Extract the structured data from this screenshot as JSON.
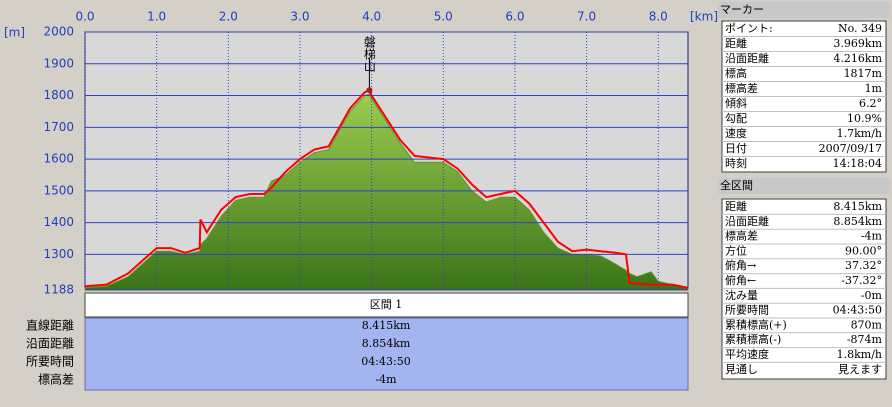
{
  "chart_data": {
    "type": "line",
    "x_label": "[km]",
    "y_label": "[m]",
    "x": [
      0,
      0.3,
      0.6,
      0.9,
      1.0,
      1.2,
      1.4,
      1.6,
      1.61,
      1.7,
      1.9,
      2.1,
      2.3,
      2.5,
      2.6,
      2.8,
      3.0,
      3.2,
      3.4,
      3.5,
      3.7,
      3.9,
      3.969,
      4.0,
      4.2,
      4.4,
      4.6,
      4.8,
      5.0,
      5.2,
      5.4,
      5.6,
      5.8,
      6.0,
      6.2,
      6.4,
      6.6,
      6.8,
      7.0,
      7.2,
      7.4,
      7.55,
      7.6,
      7.7,
      7.9,
      8.0,
      8.2,
      8.415
    ],
    "series": [
      {
        "color": "#5a9a2a",
        "fill": true,
        "values": [
          1195,
          1200,
          1230,
          1290,
          1310,
          1310,
          1300,
          1310,
          1330,
          1350,
          1420,
          1470,
          1480,
          1480,
          1530,
          1550,
          1590,
          1620,
          1630,
          1670,
          1750,
          1800,
          1805,
          1790,
          1720,
          1650,
          1590,
          1590,
          1590,
          1560,
          1500,
          1465,
          1480,
          1480,
          1440,
          1370,
          1320,
          1300,
          1300,
          1295,
          1270,
          1250,
          1240,
          1230,
          1245,
          1215,
          1205,
          1195
        ]
      },
      {
        "color": "#ff0000",
        "fill": false,
        "values": [
          1200,
          1205,
          1240,
          1300,
          1320,
          1320,
          1305,
          1320,
          1410,
          1370,
          1440,
          1480,
          1490,
          1490,
          1510,
          1560,
          1600,
          1630,
          1640,
          1680,
          1760,
          1810,
          1817,
          1800,
          1730,
          1660,
          1610,
          1605,
          1600,
          1570,
          1520,
          1480,
          1490,
          1500,
          1460,
          1400,
          1340,
          1310,
          1315,
          1310,
          1305,
          1300,
          1210,
          1208,
          1205,
          1205,
          1205,
          1195
        ]
      }
    ],
    "xlim": [
      0,
      8.415
    ],
    "xticks": [
      {
        "value": 0,
        "label": "0.0"
      },
      {
        "value": 1,
        "label": "1.0"
      },
      {
        "value": 2,
        "label": "2.0"
      },
      {
        "value": 3,
        "label": "3.0"
      },
      {
        "value": 4,
        "label": "4.0"
      },
      {
        "value": 5,
        "label": "5.0"
      },
      {
        "value": 6,
        "label": "6.0"
      },
      {
        "value": 7,
        "label": "7.0"
      },
      {
        "value": 8,
        "label": "8.0"
      }
    ],
    "ylim": [
      1188,
      2000
    ],
    "yticks": [
      1188,
      1300,
      1400,
      1500,
      1600,
      1700,
      1800,
      1900,
      2000
    ],
    "grid": true,
    "annotation": {
      "text": "磐梯山",
      "x": 3.969,
      "y": 1817
    }
  },
  "section": {
    "title": "区間 1",
    "rows": [
      [
        "直線距離",
        "8.415km"
      ],
      [
        "沿面距離",
        "8.854km"
      ],
      [
        "所要時間",
        "04:43:50"
      ],
      [
        "標高差",
        "-4m"
      ]
    ]
  },
  "marker_panel": {
    "title": "マーカー",
    "rows": [
      [
        "ポイント:",
        "No. 349"
      ],
      [
        "距離",
        "3.969km"
      ],
      [
        "沿面距離",
        "4.216km"
      ],
      [
        "標高",
        "1817m"
      ],
      [
        "標高差",
        "1m"
      ],
      [
        "傾斜",
        "6.2°"
      ],
      [
        "勾配",
        "10.9%"
      ],
      [
        "速度",
        "1.7km/h"
      ],
      [
        "日付",
        "2007/09/17"
      ],
      [
        "時刻",
        "14:18:04"
      ]
    ]
  },
  "total_panel": {
    "title": "全区間",
    "rows": [
      [
        "距離",
        "8.415km"
      ],
      [
        "沿面距離",
        "8.854km"
      ],
      [
        "標高差",
        "-4m"
      ],
      [
        "方位",
        "90.00°"
      ],
      [
        "俯角→",
        "37.32°"
      ],
      [
        "俯角←",
        "-37.32°"
      ],
      [
        "沈み量",
        "-0m"
      ],
      [
        "所要時間",
        "04:43:50"
      ],
      [
        "累積標高(+)",
        "870m"
      ],
      [
        "累積標高(-)",
        "-874m"
      ],
      [
        "平均速度",
        "1.8km/h"
      ],
      [
        "見通し",
        "見えます"
      ]
    ]
  }
}
